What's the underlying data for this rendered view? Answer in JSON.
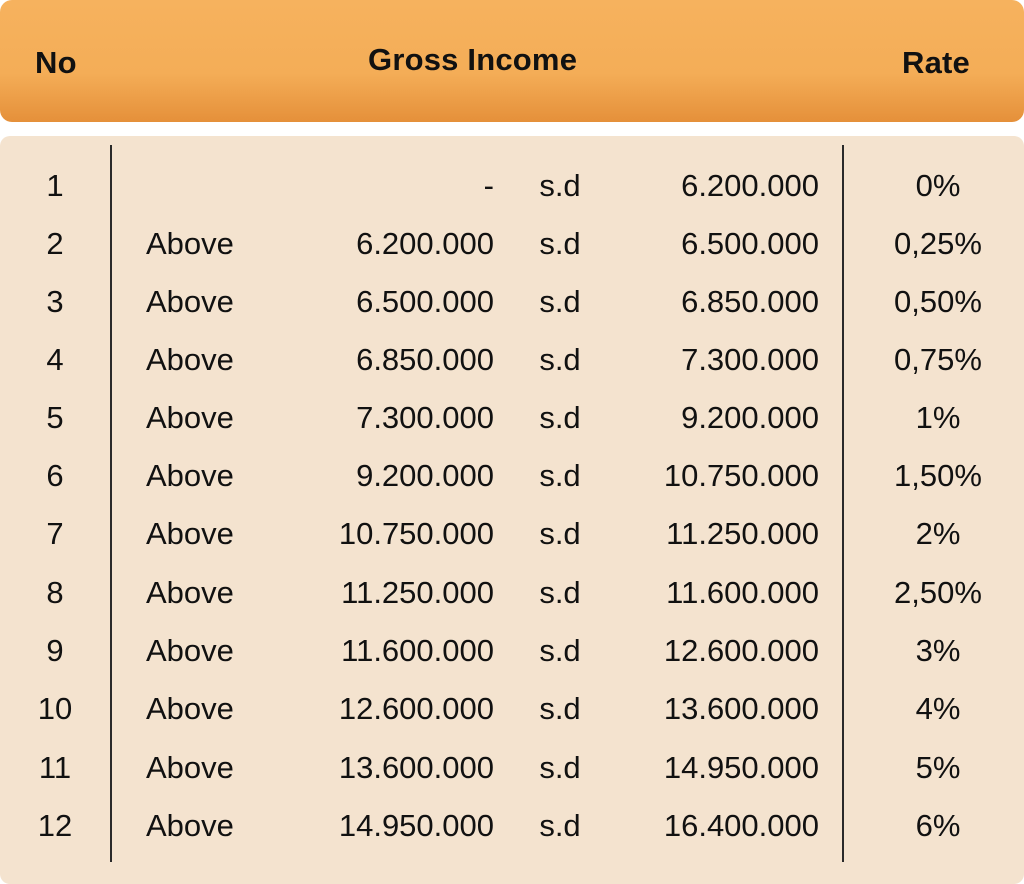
{
  "header": {
    "no": "No",
    "gross_income": "Gross Income",
    "rate": "Rate"
  },
  "rows": [
    {
      "no": "1",
      "above": "",
      "from": "-",
      "sd": "s.d",
      "to": "6.200.000",
      "rate": "0%"
    },
    {
      "no": "2",
      "above": "Above",
      "from": "6.200.000",
      "sd": "s.d",
      "to": "6.500.000",
      "rate": "0,25%"
    },
    {
      "no": "3",
      "above": "Above",
      "from": "6.500.000",
      "sd": "s.d",
      "to": "6.850.000",
      "rate": "0,50%"
    },
    {
      "no": "4",
      "above": "Above",
      "from": "6.850.000",
      "sd": "s.d",
      "to": "7.300.000",
      "rate": "0,75%"
    },
    {
      "no": "5",
      "above": "Above",
      "from": "7.300.000",
      "sd": "s.d",
      "to": "9.200.000",
      "rate": "1%"
    },
    {
      "no": "6",
      "above": "Above",
      "from": "9.200.000",
      "sd": "s.d",
      "to": "10.750.000",
      "rate": "1,50%"
    },
    {
      "no": "7",
      "above": "Above",
      "from": "10.750.000",
      "sd": "s.d",
      "to": "11.250.000",
      "rate": "2%"
    },
    {
      "no": "8",
      "above": "Above",
      "from": "11.250.000",
      "sd": "s.d",
      "to": "11.600.000",
      "rate": "2,50%"
    },
    {
      "no": "9",
      "above": "Above",
      "from": "11.600.000",
      "sd": "s.d",
      "to": "12.600.000",
      "rate": "3%"
    },
    {
      "no": "10",
      "above": "Above",
      "from": "12.600.000",
      "sd": "s.d",
      "to": "13.600.000",
      "rate": "4%"
    },
    {
      "no": "11",
      "above": "Above",
      "from": "13.600.000",
      "sd": "s.d",
      "to": "14.950.000",
      "rate": "5%"
    },
    {
      "no": "12",
      "above": "Above",
      "from": "14.950.000",
      "sd": "s.d",
      "to": "16.400.000",
      "rate": "6%"
    }
  ],
  "colors": {
    "header_bg": "#f4ad57",
    "body_bg": "#f4e3cf",
    "text": "#111111"
  }
}
